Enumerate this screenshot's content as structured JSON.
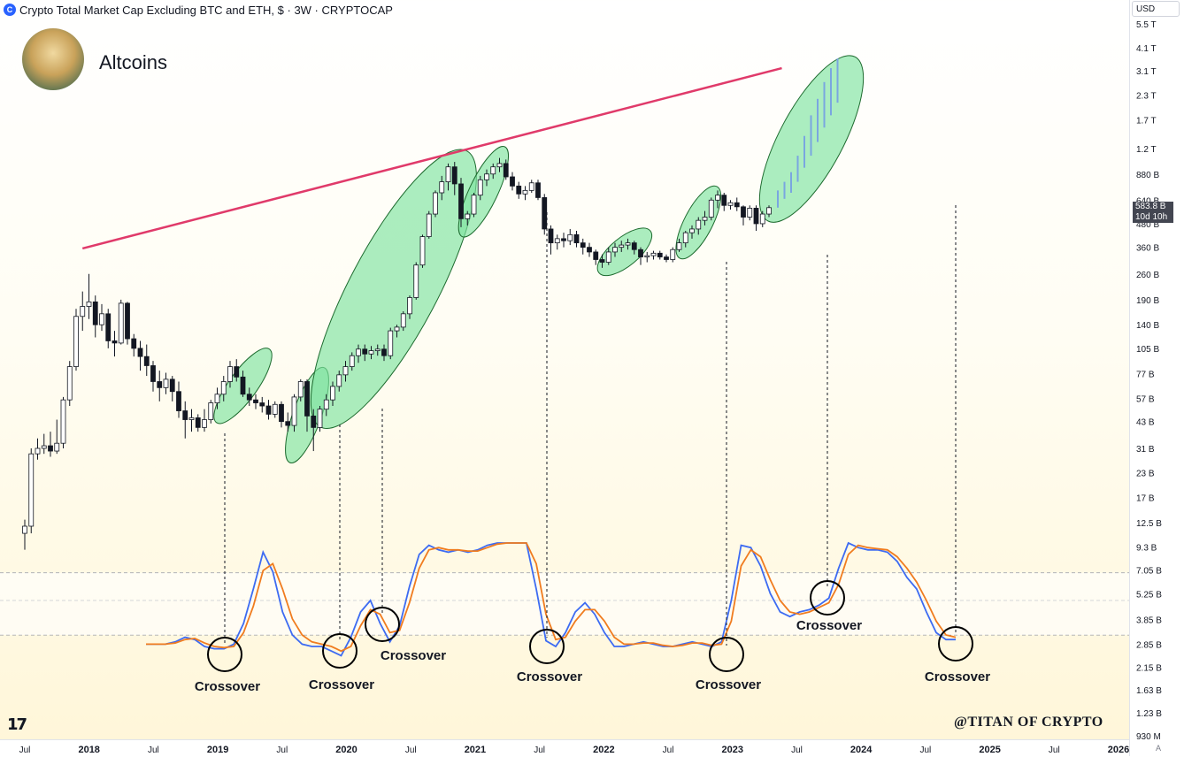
{
  "header": {
    "icon": "cryptocap-logo",
    "title": "Crypto Total Market Cap Excluding BTC and ETH, $ · 3W · CRYPTOCAP"
  },
  "brand": {
    "name": "Altcoins",
    "avatar_icon": "profile-avatar"
  },
  "toolbar": {
    "currency": "USD"
  },
  "price_tag": {
    "value": "583.8 B",
    "countdown": "10d 10h"
  },
  "watermark": "@TITAN OF CRYPTO",
  "tv_logo": "TV",
  "scale_mode": "A",
  "chart_data": [
    {
      "type": "candlestick",
      "title": "Crypto Total Market Cap Excluding BTC and ETH, $ · 3W · CRYPTOCAP",
      "y_scale": "log",
      "y_unit": "USD",
      "y_ticks": [
        "5.5 T",
        "4.1 T",
        "3.1 T",
        "2.3 T",
        "1.7 T",
        "1.2 T",
        "880 B",
        "640 B",
        "480 B",
        "360 B",
        "260 B",
        "190 B",
        "140 B",
        "105 B",
        "77 B",
        "57 B",
        "43 B",
        "31 B",
        "23 B",
        "17 B",
        "12.5 B",
        "9.3 B",
        "7.05 B",
        "5.25 B",
        "3.85 B",
        "2.85 B",
        "2.15 B",
        "1.63 B",
        "1.23 B",
        "930 M"
      ],
      "x_ticks": [
        "Jul",
        "2018",
        "Jul",
        "2019",
        "Jul",
        "2020",
        "Jul",
        "2021",
        "Jul",
        "2022",
        "Jul",
        "2023",
        "Jul",
        "2024",
        "Jul",
        "2025",
        "Jul",
        "2026"
      ],
      "x_range": [
        "2017-06",
        "2026-01"
      ],
      "colors": {
        "up": "#ffffff",
        "down": "#131722",
        "wick": "#131722"
      },
      "ohlc_B": [
        [
          11,
          13,
          9,
          12
        ],
        [
          12,
          31,
          11,
          29
        ],
        [
          29,
          35,
          27,
          31
        ],
        [
          31,
          37,
          29,
          32
        ],
        [
          32,
          38,
          28,
          30
        ],
        [
          30,
          44,
          29,
          33
        ],
        [
          33,
          58,
          31,
          56
        ],
        [
          56,
          90,
          52,
          84
        ],
        [
          84,
          170,
          80,
          155
        ],
        [
          155,
          210,
          130,
          175
        ],
        [
          175,
          260,
          150,
          185
        ],
        [
          185,
          200,
          120,
          140
        ],
        [
          140,
          180,
          130,
          160
        ],
        [
          160,
          170,
          105,
          115
        ],
        [
          115,
          130,
          95,
          112
        ],
        [
          112,
          190,
          110,
          182
        ],
        [
          182,
          185,
          110,
          118
        ],
        [
          118,
          125,
          95,
          105
        ],
        [
          105,
          115,
          80,
          95
        ],
        [
          95,
          110,
          75,
          85
        ],
        [
          85,
          90,
          62,
          70
        ],
        [
          70,
          80,
          55,
          65
        ],
        [
          65,
          78,
          60,
          72
        ],
        [
          72,
          75,
          55,
          62
        ],
        [
          62,
          70,
          45,
          49
        ],
        [
          49,
          55,
          35,
          44
        ],
        [
          44,
          50,
          38,
          45
        ],
        [
          45,
          47,
          38,
          40
        ],
        [
          40,
          50,
          38,
          44
        ],
        [
          44,
          56,
          42,
          54
        ],
        [
          54,
          65,
          50,
          60
        ],
        [
          60,
          75,
          55,
          70
        ],
        [
          70,
          90,
          65,
          84
        ],
        [
          84,
          92,
          70,
          74
        ],
        [
          74,
          80,
          58,
          60
        ],
        [
          60,
          65,
          52,
          56
        ],
        [
          56,
          60,
          50,
          54
        ],
        [
          54,
          58,
          48,
          52
        ],
        [
          52,
          56,
          44,
          47
        ],
        [
          47,
          55,
          45,
          53
        ],
        [
          53,
          55,
          40,
          43
        ],
        [
          43,
          48,
          38,
          41
        ],
        [
          41,
          60,
          38,
          58
        ],
        [
          58,
          72,
          55,
          70
        ],
        [
          70,
          72,
          38,
          46
        ],
        [
          46,
          50,
          30,
          40
        ],
        [
          40,
          52,
          38,
          50
        ],
        [
          50,
          60,
          46,
          56
        ],
        [
          56,
          70,
          52,
          66
        ],
        [
          66,
          80,
          62,
          76
        ],
        [
          76,
          90,
          70,
          84
        ],
        [
          84,
          100,
          80,
          96
        ],
        [
          96,
          110,
          88,
          104
        ],
        [
          104,
          110,
          90,
          98
        ],
        [
          98,
          108,
          92,
          102
        ],
        [
          102,
          110,
          96,
          104
        ],
        [
          104,
          110,
          90,
          96
        ],
        [
          96,
          135,
          92,
          130
        ],
        [
          130,
          140,
          120,
          136
        ],
        [
          136,
          165,
          130,
          160
        ],
        [
          160,
          200,
          150,
          195
        ],
        [
          195,
          300,
          190,
          290
        ],
        [
          290,
          420,
          280,
          410
        ],
        [
          410,
          560,
          400,
          540
        ],
        [
          540,
          720,
          520,
          700
        ],
        [
          700,
          860,
          640,
          800
        ],
        [
          800,
          1000,
          720,
          960
        ],
        [
          960,
          1020,
          680,
          780
        ],
        [
          780,
          840,
          460,
          510
        ],
        [
          510,
          560,
          470,
          540
        ],
        [
          540,
          700,
          520,
          680
        ],
        [
          680,
          860,
          640,
          820
        ],
        [
          820,
          930,
          760,
          880
        ],
        [
          880,
          1000,
          830,
          960
        ],
        [
          960,
          1070,
          900,
          1000
        ],
        [
          1000,
          1050,
          820,
          850
        ],
        [
          850,
          900,
          720,
          760
        ],
        [
          760,
          800,
          650,
          690
        ],
        [
          690,
          760,
          640,
          720
        ],
        [
          720,
          820,
          700,
          790
        ],
        [
          790,
          820,
          640,
          660
        ],
        [
          660,
          690,
          420,
          450
        ],
        [
          450,
          470,
          330,
          380
        ],
        [
          380,
          420,
          350,
          400
        ],
        [
          400,
          430,
          360,
          390
        ],
        [
          390,
          450,
          370,
          420
        ],
        [
          420,
          440,
          360,
          380
        ],
        [
          380,
          400,
          330,
          360
        ],
        [
          360,
          380,
          320,
          340
        ],
        [
          340,
          350,
          290,
          310
        ],
        [
          310,
          330,
          280,
          300
        ],
        [
          300,
          360,
          290,
          340
        ],
        [
          340,
          380,
          320,
          360
        ],
        [
          360,
          390,
          340,
          370
        ],
        [
          370,
          400,
          350,
          380
        ],
        [
          380,
          390,
          330,
          350
        ],
        [
          350,
          360,
          290,
          320
        ],
        [
          320,
          340,
          300,
          325
        ],
        [
          325,
          345,
          310,
          335
        ],
        [
          335,
          345,
          310,
          320
        ],
        [
          320,
          330,
          300,
          310
        ],
        [
          310,
          360,
          300,
          350
        ],
        [
          350,
          400,
          340,
          380
        ],
        [
          380,
          440,
          360,
          430
        ],
        [
          430,
          470,
          400,
          450
        ],
        [
          450,
          520,
          420,
          500
        ],
        [
          500,
          560,
          470,
          520
        ],
        [
          520,
          660,
          500,
          640
        ],
        [
          640,
          720,
          580,
          680
        ],
        [
          680,
          700,
          560,
          600
        ],
        [
          600,
          640,
          570,
          620
        ],
        [
          620,
          660,
          560,
          590
        ],
        [
          590,
          600,
          470,
          520
        ],
        [
          520,
          600,
          500,
          580
        ],
        [
          580,
          600,
          440,
          480
        ],
        [
          480,
          560,
          460,
          540
        ],
        [
          540,
          600,
          520,
          583.8
        ]
      ],
      "projection_B": [
        [
          583.8,
          720
        ],
        [
          650,
          800
        ],
        [
          700,
          900
        ],
        [
          800,
          1100
        ],
        [
          950,
          1400
        ],
        [
          1100,
          1800
        ],
        [
          1300,
          2200
        ],
        [
          1550,
          2700
        ],
        [
          1800,
          3200
        ],
        [
          2100,
          3600
        ]
      ],
      "resistance_line": {
        "from_B": 355,
        "to_B": 3200,
        "color": "#e03a6a"
      },
      "impulse_zones": [
        "2019 rally",
        "2020 Q1 rally",
        "2020-2021 bull run",
        "2021 Q3 rally",
        "2023 Q1 rally",
        "2023 Q4 rally",
        "2025 projection"
      ],
      "zone_color": "#7ee3a0"
    },
    {
      "type": "line",
      "title": "Stochastic oscillator",
      "series": [
        {
          "color": "#3d6bf2",
          "values": [
            12,
            12,
            12,
            14,
            18,
            16,
            10,
            8,
            8,
            12,
            30,
            60,
            92,
            75,
            40,
            20,
            12,
            10,
            10,
            6,
            2,
            18,
            40,
            50,
            30,
            14,
            28,
            62,
            90,
            98,
            94,
            92,
            94,
            92,
            94,
            98,
            100,
            100,
            100,
            100,
            60,
            15,
            10,
            22,
            40,
            48,
            38,
            22,
            10,
            10,
            12,
            14,
            12,
            10,
            10,
            12,
            14,
            12,
            10,
            14,
            50,
            98,
            96,
            80,
            56,
            40,
            36,
            40,
            42,
            46,
            52,
            78,
            100,
            96,
            94,
            94,
            92,
            84,
            70,
            60,
            40,
            22,
            16,
            16
          ]
        },
        {
          "color": "#f07c1f",
          "values": [
            12,
            12,
            12,
            13,
            16,
            17,
            13,
            10,
            9,
            10,
            22,
            45,
            76,
            82,
            60,
            34,
            20,
            14,
            12,
            10,
            6,
            10,
            28,
            42,
            38,
            22,
            24,
            48,
            78,
            94,
            96,
            94,
            94,
            93,
            93,
            96,
            99,
            100,
            100,
            100,
            82,
            38,
            16,
            18,
            32,
            42,
            42,
            32,
            18,
            12,
            12,
            13,
            13,
            11,
            10,
            11,
            13,
            13,
            11,
            12,
            32,
            80,
            94,
            88,
            68,
            50,
            40,
            38,
            40,
            44,
            48,
            64,
            90,
            98,
            96,
            95,
            94,
            88,
            78,
            66,
            50,
            32,
            20,
            18
          ]
        }
      ],
      "bands": [
        80,
        50,
        20
      ],
      "crossovers": [
        "Crossover",
        "Crossover",
        "Crossover",
        "Crossover",
        "Crossover",
        "Crossover",
        "Crossover"
      ]
    }
  ]
}
